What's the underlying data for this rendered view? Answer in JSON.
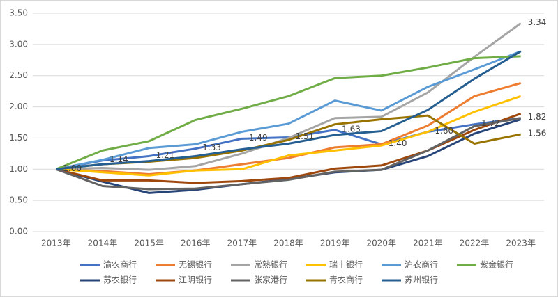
{
  "chart_data": {
    "type": "line",
    "categories": [
      "2013年",
      "2014年",
      "2015年",
      "2016年",
      "2017年",
      "2018年",
      "2019年",
      "2020年",
      "2021年",
      "2022年",
      "2023年"
    ],
    "ylim": [
      0,
      3.5
    ],
    "yticks": [
      {
        "value": 0,
        "label": "0.00"
      },
      {
        "value": 0.5,
        "label": "0.50"
      },
      {
        "value": 1,
        "label": "1.00"
      },
      {
        "value": 1.5,
        "label": "1.50"
      },
      {
        "value": 2,
        "label": "2.00"
      },
      {
        "value": 2.5,
        "label": "2.50"
      },
      {
        "value": 3,
        "label": "3.00"
      },
      {
        "value": 3.5,
        "label": "3.50"
      }
    ],
    "grid": true,
    "legend": "bottom",
    "series": [
      {
        "name": "渝农商行",
        "color": "#4472c4",
        "values": [
          1.0,
          1.14,
          1.21,
          1.33,
          1.49,
          1.51,
          1.63,
          1.4,
          1.6,
          1.72,
          1.82
        ],
        "value_labels": [
          "1.00",
          "1.14",
          "1.21",
          "1.33",
          "1.49",
          "1.51",
          "1.63",
          "1.40",
          "1.60",
          "1.72",
          "1.82"
        ]
      },
      {
        "name": "无锡银行",
        "color": "#ed7d31",
        "values": [
          1.0,
          0.97,
          0.92,
          0.98,
          1.08,
          1.18,
          1.35,
          1.4,
          1.7,
          2.17,
          2.38
        ]
      },
      {
        "name": "常熟银行",
        "color": "#a5a5a5",
        "values": [
          1.0,
          1.02,
          0.99,
          1.05,
          1.25,
          1.5,
          1.82,
          1.84,
          2.23,
          2.8,
          3.34
        ],
        "value_labels": [
          null,
          null,
          null,
          null,
          null,
          null,
          null,
          null,
          null,
          null,
          "3.34"
        ]
      },
      {
        "name": "瑞丰银行",
        "color": "#ffc000",
        "values": [
          1.0,
          0.95,
          0.9,
          0.98,
          1.0,
          1.22,
          1.3,
          1.38,
          1.6,
          1.92,
          2.17
        ]
      },
      {
        "name": "沪农商行",
        "color": "#5b9bd5",
        "values": [
          1.0,
          1.15,
          1.34,
          1.4,
          1.6,
          1.73,
          2.1,
          1.94,
          2.32,
          2.6,
          2.89
        ]
      },
      {
        "name": "紫金银行",
        "color": "#70ad47",
        "values": [
          1.0,
          1.3,
          1.45,
          1.79,
          1.97,
          2.17,
          2.46,
          2.5,
          2.63,
          2.78,
          2.81
        ]
      },
      {
        "name": "苏农银行",
        "color": "#264478",
        "values": [
          1.0,
          0.8,
          0.62,
          0.67,
          0.76,
          0.84,
          0.95,
          0.99,
          1.21,
          1.57,
          1.8
        ]
      },
      {
        "name": "江阴银行",
        "color": "#9e480e",
        "values": [
          1.0,
          0.82,
          0.82,
          0.78,
          0.81,
          0.86,
          1.01,
          1.06,
          1.3,
          1.63,
          1.89
        ]
      },
      {
        "name": "张家港行",
        "color": "#636363",
        "values": [
          1.0,
          0.73,
          0.68,
          0.69,
          0.76,
          0.83,
          0.96,
          0.99,
          1.3,
          1.69,
          1.82
        ]
      },
      {
        "name": "青农商行",
        "color": "#997300",
        "values": [
          1.0,
          1.08,
          1.12,
          1.18,
          1.3,
          1.47,
          1.72,
          1.8,
          1.86,
          1.41,
          1.56
        ],
        "value_labels": [
          null,
          null,
          null,
          null,
          null,
          null,
          null,
          null,
          null,
          null,
          "1.56"
        ]
      },
      {
        "name": "苏州银行",
        "color": "#255e91",
        "values": [
          1.0,
          1.08,
          1.13,
          1.21,
          1.32,
          1.41,
          1.55,
          1.61,
          1.95,
          2.45,
          2.89
        ]
      }
    ]
  }
}
